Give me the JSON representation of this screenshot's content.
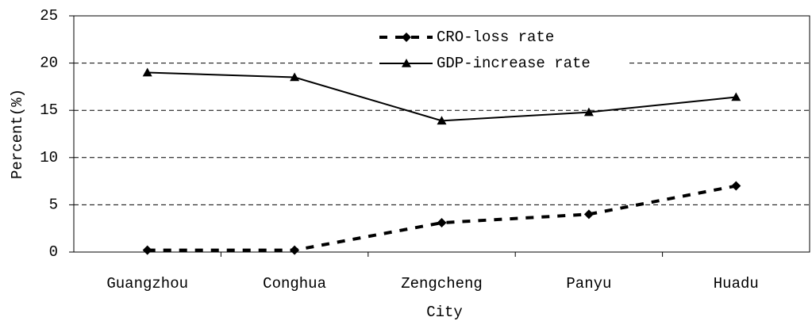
{
  "chart_data": {
    "type": "line",
    "xlabel": "City",
    "ylabel": "Percent(%)",
    "categories": [
      "Guangzhou",
      "Conghua",
      "Zengcheng",
      "Panyu",
      "Huadu"
    ],
    "series": [
      {
        "name": "CRO-loss rate",
        "color": "#000000",
        "style": "dashed",
        "marker": "diamond",
        "values": [
          0.2,
          0.2,
          3.1,
          4.0,
          7.0
        ]
      },
      {
        "name": "GDP-increase rate",
        "color": "#000000",
        "style": "solid",
        "marker": "triangle",
        "values": [
          19.0,
          18.5,
          13.9,
          14.8,
          16.4
        ]
      }
    ],
    "ylim": [
      0,
      25
    ],
    "yticks": [
      0,
      5,
      10,
      15,
      20,
      25
    ],
    "grid": true,
    "legend": "top"
  }
}
